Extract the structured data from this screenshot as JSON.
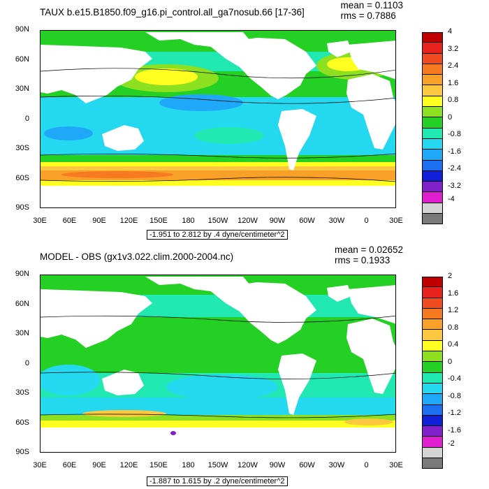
{
  "lat_labels": [
    "90N",
    "60N",
    "30N",
    "0",
    "30S",
    "60S",
    "90S"
  ],
  "lon_labels": [
    "30E",
    "60E",
    "90E",
    "120E",
    "150E",
    "180",
    "150W",
    "120W",
    "90W",
    "60W",
    "30W",
    "0",
    "30E"
  ],
  "palette": [
    "#c00000",
    "#e8221c",
    "#f04a20",
    "#f57a20",
    "#f8a028",
    "#fcc840",
    "#ffff20",
    "#8ce020",
    "#24d024",
    "#20e8b0",
    "#24d8f0",
    "#20a8f8",
    "#1c70f0",
    "#1020d8",
    "#8020c8",
    "#e020d0",
    "#d4d4d4",
    "#7a7a7a"
  ],
  "panels": [
    {
      "title": "TAUX b.e15.B1850.f09_g16.pi_control.all_ga7nosub.66 [17-36]",
      "mean": "mean = 0.1103",
      "rms": "rms = 0.7886",
      "range": "-1.951 to 2.812 by .4 dyne/centimeter^2",
      "legend_values": [
        "4",
        "3.2",
        "2.4",
        "1.6",
        "0.8",
        "0",
        "-0.8",
        "-1.6",
        "-2.4",
        "-3.2",
        "-4"
      ]
    },
    {
      "title": "MODEL - OBS (gx1v3.022.clim.2000-2004.nc)",
      "mean": "mean = 0.02652",
      "rms": "rms = 0.1933",
      "range": "-1.887 to 1.615 by .2 dyne/centimeter^2",
      "legend_values": [
        "2",
        "1.6",
        "1.2",
        "0.8",
        "0.4",
        "0",
        "-0.4",
        "-0.8",
        "-1.2",
        "-1.6",
        "-2"
      ]
    }
  ]
}
